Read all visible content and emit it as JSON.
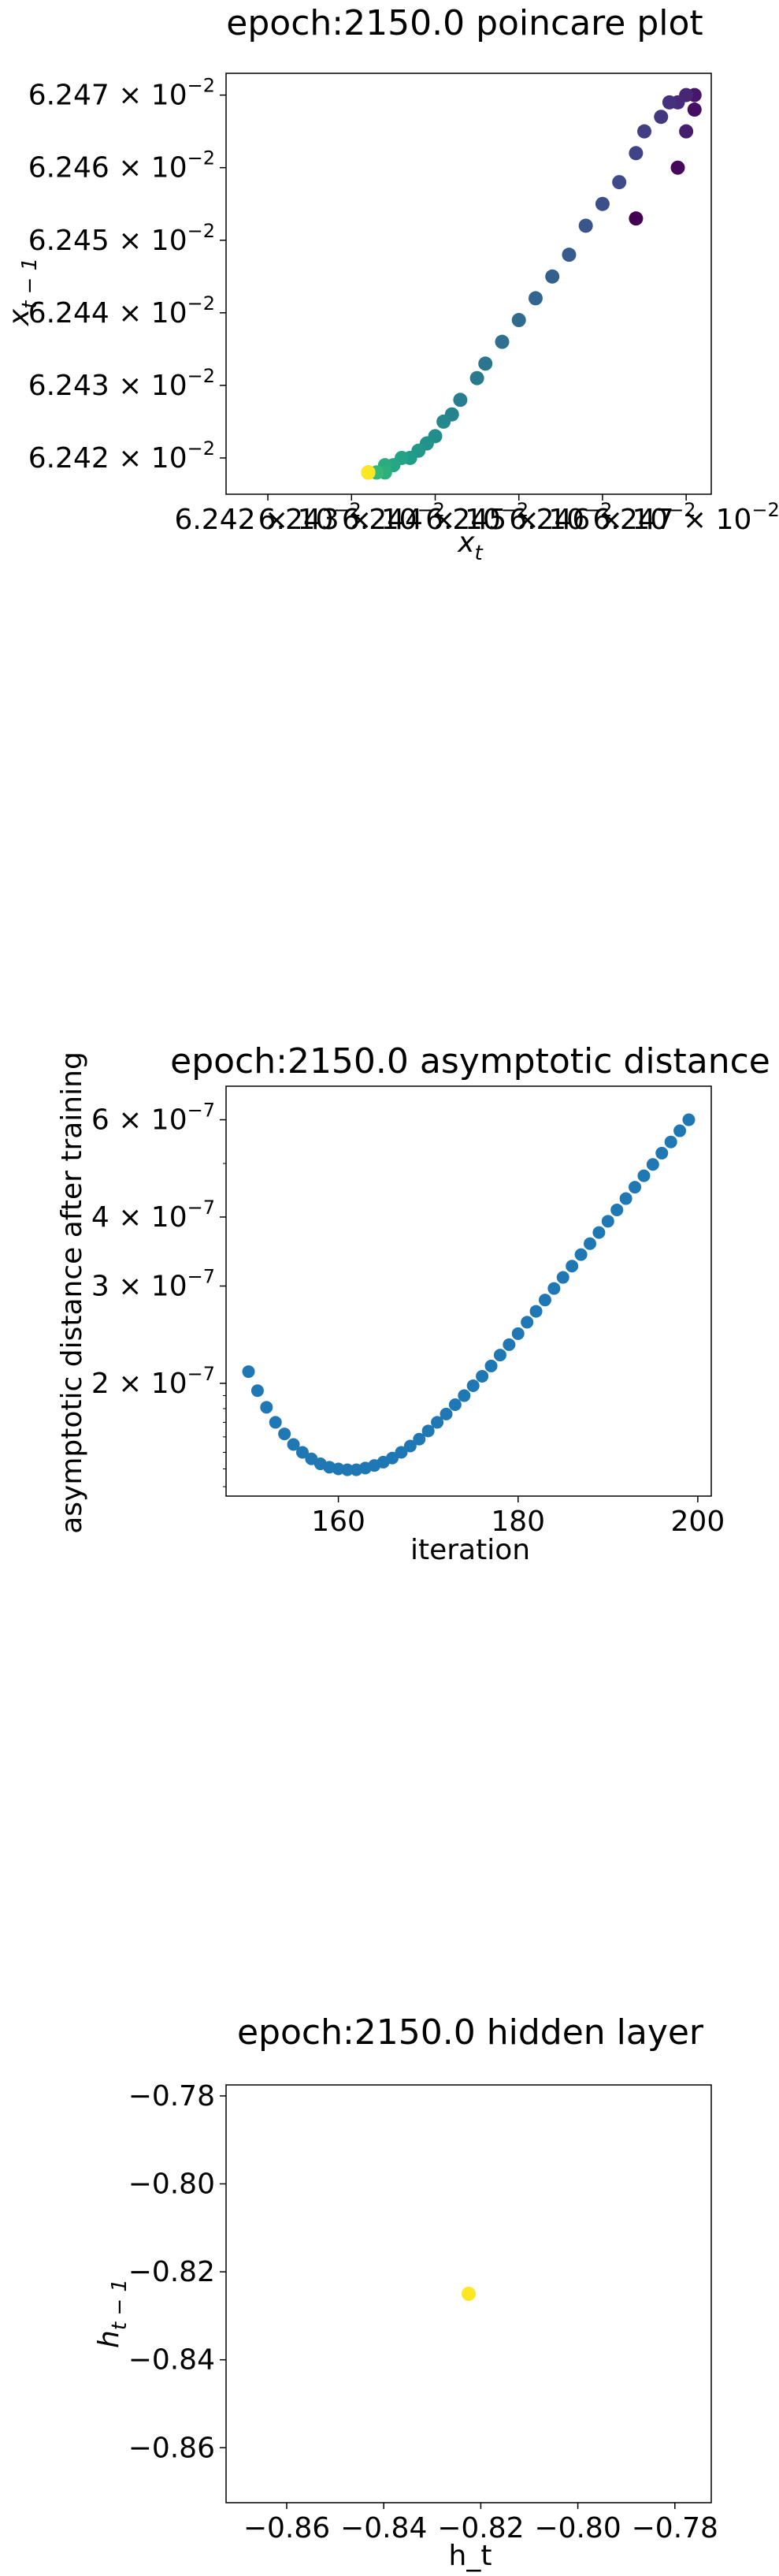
{
  "chart_data": [
    {
      "type": "scatter",
      "title": "epoch:2150.0 poincare plot",
      "xlabel": "x_t",
      "ylabel": "x_{t-1}",
      "xlim": [
        0.062415,
        0.062473
      ],
      "ylim": [
        0.062415,
        0.062473
      ],
      "x_tick_labels": [
        "6.242 × 10^-2",
        "6.243 × 10^-2",
        "6.244 × 10^-2",
        "6.245 × 10^-2",
        "6.246 × 10^-2",
        "6.247 × 10^-2"
      ],
      "y_tick_labels": [
        "6.242 × 10^-2",
        "6.243 × 10^-2",
        "6.244 × 10^-2",
        "6.245 × 10^-2",
        "6.246 × 10^-2",
        "6.247 × 10^-2"
      ],
      "x_ticks": [
        0.06242,
        0.06243,
        0.06244,
        0.06245,
        0.06246,
        0.06247
      ],
      "y_ticks": [
        0.06242,
        0.06243,
        0.06244,
        0.06245,
        0.06246,
        0.06247
      ],
      "colormap": "viridis",
      "points": [
        [
          0.062464,
          0.062453
        ],
        [
          0.062469,
          0.06246
        ],
        [
          0.062471,
          0.062468
        ],
        [
          0.062471,
          0.06247
        ],
        [
          0.06247,
          0.062465
        ],
        [
          0.06247,
          0.06247
        ],
        [
          0.062469,
          0.062469
        ],
        [
          0.062468,
          0.062469
        ],
        [
          0.062467,
          0.062467
        ],
        [
          0.062465,
          0.062465
        ],
        [
          0.062464,
          0.062462
        ],
        [
          0.062462,
          0.062458
        ],
        [
          0.06246,
          0.062455
        ],
        [
          0.062458,
          0.062452
        ],
        [
          0.062456,
          0.062448
        ],
        [
          0.062454,
          0.062445
        ],
        [
          0.062452,
          0.062442
        ],
        [
          0.06245,
          0.062439
        ],
        [
          0.062448,
          0.062436
        ],
        [
          0.062446,
          0.062433
        ],
        [
          0.062445,
          0.062431
        ],
        [
          0.062443,
          0.062428
        ],
        [
          0.062442,
          0.062426
        ],
        [
          0.062441,
          0.062425
        ],
        [
          0.06244,
          0.062423
        ],
        [
          0.062439,
          0.062422
        ],
        [
          0.062438,
          0.062421
        ],
        [
          0.062437,
          0.06242
        ],
        [
          0.062436,
          0.06242
        ],
        [
          0.062435,
          0.062419
        ],
        [
          0.062434,
          0.062419
        ],
        [
          0.062434,
          0.062418
        ],
        [
          0.062433,
          0.062418
        ],
        [
          0.062433,
          0.062418
        ],
        [
          0.062432,
          0.062418
        ],
        [
          0.062432,
          0.062418
        ],
        [
          0.062432,
          0.062418
        ],
        [
          0.062432,
          0.062418
        ],
        [
          0.062432,
          0.062418
        ],
        [
          0.062432,
          0.062418
        ],
        [
          0.062432,
          0.062418
        ],
        [
          0.062432,
          0.062418
        ],
        [
          0.062432,
          0.062418
        ],
        [
          0.062432,
          0.062418
        ],
        [
          0.062432,
          0.062418
        ],
        [
          0.062432,
          0.062418
        ],
        [
          0.062432,
          0.062418
        ],
        [
          0.062432,
          0.062418
        ],
        [
          0.062432,
          0.062418
        ],
        [
          0.062432,
          0.062418
        ]
      ]
    },
    {
      "type": "scatter",
      "title": "epoch:2150.0 asymptotic distance",
      "xlabel": "iteration",
      "ylabel": "asymptotic distance after training",
      "xlim": [
        147.5,
        201.5
      ],
      "ylim": [
        1.25e-07,
        6.9e-07
      ],
      "yscale": "log",
      "x_ticks": [
        160,
        180,
        200
      ],
      "x_tick_labels": [
        "160",
        "180",
        "200"
      ],
      "y_ticks": [
        2e-07,
        3e-07,
        4e-07,
        6e-07
      ],
      "y_tick_labels": [
        "2 × 10^-7",
        "3 × 10^-7",
        "4 × 10^-7",
        "6 × 10^-7"
      ],
      "color": "#1f77b4",
      "x": [
        150,
        151,
        152,
        153,
        154,
        155,
        156,
        157,
        158,
        159,
        160,
        161,
        162,
        163,
        164,
        165,
        166,
        167,
        168,
        169,
        170,
        171,
        172,
        173,
        174,
        175,
        176,
        177,
        178,
        179,
        180,
        181,
        182,
        183,
        184,
        185,
        186,
        187,
        188,
        189,
        190,
        191,
        192,
        193,
        194,
        195,
        196,
        197,
        198,
        199
      ],
      "y": [
        2.1e-07,
        1.94e-07,
        1.81e-07,
        1.7e-07,
        1.62e-07,
        1.55e-07,
        1.5e-07,
        1.46e-07,
        1.43e-07,
        1.41e-07,
        1.4e-07,
        1.395e-07,
        1.395e-07,
        1.405e-07,
        1.42e-07,
        1.44e-07,
        1.465e-07,
        1.5e-07,
        1.54e-07,
        1.585e-07,
        1.64e-07,
        1.7e-07,
        1.76e-07,
        1.83e-07,
        1.9e-07,
        1.98e-07,
        2.06e-07,
        2.15e-07,
        2.25e-07,
        2.35e-07,
        2.46e-07,
        2.58e-07,
        2.7e-07,
        2.83e-07,
        2.97e-07,
        3.11e-07,
        3.26e-07,
        3.42e-07,
        3.58e-07,
        3.75e-07,
        3.93e-07,
        4.12e-07,
        4.32e-07,
        4.53e-07,
        4.75e-07,
        4.98e-07,
        5.22e-07,
        5.47e-07,
        5.73e-07,
        6e-07
      ]
    },
    {
      "type": "scatter",
      "title": "epoch:2150.0 hidden layer",
      "xlabel": "h_t",
      "ylabel": "h_{t-1}",
      "xlim": [
        -0.8725,
        -0.7725
      ],
      "ylim": [
        -0.8725,
        -0.7775
      ],
      "x_ticks": [
        -0.86,
        -0.84,
        -0.82,
        -0.8,
        -0.78
      ],
      "x_tick_labels": [
        "−0.86",
        "−0.84",
        "−0.82",
        "−0.80",
        "−0.78"
      ],
      "y_ticks": [
        -0.86,
        -0.84,
        -0.82,
        -0.8,
        -0.78
      ],
      "y_tick_labels": [
        "−0.86",
        "−0.84",
        "−0.82",
        "−0.80",
        "−0.78"
      ],
      "color": "#fde725",
      "points": [
        [
          -0.8225,
          -0.825
        ]
      ]
    }
  ]
}
